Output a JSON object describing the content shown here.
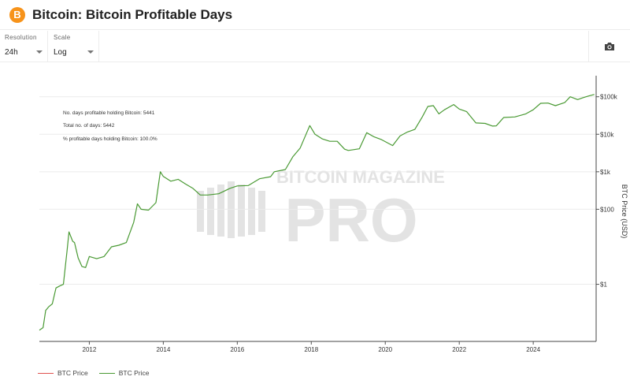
{
  "header": {
    "title": "Bitcoin: Bitcoin Profitable Days",
    "coin_symbol": "B",
    "icon": "bitcoin-icon"
  },
  "controls": {
    "resolution": {
      "label": "Resolution",
      "value": "24h"
    },
    "scale": {
      "label": "Scale",
      "value": "Log"
    },
    "camera_icon": "camera-icon"
  },
  "colors": {
    "price_line": "#4a9a34",
    "legend_red": "#e0524f",
    "bitcoin_orange": "#f7931a",
    "watermark": "#e3e3e3"
  },
  "stats": {
    "profitable_days": "No. days profitable holding Bitcoin: 5441",
    "total_days": "Total no. of days: 5442",
    "percent_profitable": "% profitable days holding Bitcoin: 100.0%"
  },
  "watermark": {
    "line1": "BITCOIN MAGAZINE",
    "line2": "PRO"
  },
  "legend": [
    {
      "label": "BTC Price",
      "color": "#e0524f"
    },
    {
      "label": "BTC Price",
      "color": "#4a9a34"
    }
  ],
  "chart_data": {
    "type": "line",
    "xlabel": "",
    "ylabel": "BTC Price (USD)",
    "y_scale": "log",
    "x_range": [
      2010.65,
      2025.7
    ],
    "y_range": [
      0.03,
      300000
    ],
    "x_ticks": [
      {
        "value": 2012,
        "label": "2012"
      },
      {
        "value": 2014,
        "label": "2014"
      },
      {
        "value": 2016,
        "label": "2016"
      },
      {
        "value": 2018,
        "label": "2018"
      },
      {
        "value": 2020,
        "label": "2020"
      },
      {
        "value": 2022,
        "label": "2022"
      },
      {
        "value": 2024,
        "label": "2024"
      }
    ],
    "y_ticks": [
      {
        "value": 1,
        "label": "$1"
      },
      {
        "value": 100,
        "label": "$100"
      },
      {
        "value": 1000,
        "label": "$1k"
      },
      {
        "value": 10000,
        "label": "$10k"
      },
      {
        "value": 100000,
        "label": "$100k"
      }
    ],
    "grid": true,
    "series": [
      {
        "x": [
          2010.65,
          2010.75,
          2010.82,
          2010.9,
          2011.0,
          2011.1,
          2011.2,
          2011.3,
          2011.4,
          2011.45,
          2011.55,
          2011.6,
          2011.7,
          2011.8,
          2011.9,
          2012.0,
          2012.2,
          2012.4,
          2012.6,
          2012.8,
          2013.0,
          2013.2,
          2013.3,
          2013.4,
          2013.6,
          2013.8,
          2013.92,
          2014.0,
          2014.2,
          2014.4,
          2014.6,
          2014.8,
          2015.0,
          2015.2,
          2015.5,
          2015.8,
          2016.0,
          2016.3,
          2016.6,
          2016.9,
          2017.0,
          2017.3,
          2017.5,
          2017.7,
          2017.85,
          2017.96,
          2018.1,
          2018.3,
          2018.5,
          2018.7,
          2018.9,
          2019.0,
          2019.3,
          2019.5,
          2019.7,
          2019.9,
          2020.2,
          2020.4,
          2020.6,
          2020.8,
          2021.0,
          2021.15,
          2021.3,
          2021.45,
          2021.6,
          2021.85,
          2022.0,
          2022.2,
          2022.45,
          2022.7,
          2022.9,
          2023.0,
          2023.2,
          2023.5,
          2023.8,
          2024.0,
          2024.2,
          2024.4,
          2024.6,
          2024.85,
          2025.0,
          2025.2,
          2025.35,
          2025.5,
          2025.65
        ],
        "y": [
          0.06,
          0.07,
          0.2,
          0.25,
          0.3,
          0.8,
          0.9,
          1.0,
          8,
          25,
          14,
          13,
          5,
          3,
          2.8,
          5.5,
          4.8,
          5.5,
          10,
          11,
          13,
          45,
          140,
          100,
          95,
          150,
          1000,
          750,
          560,
          630,
          470,
          360,
          240,
          240,
          260,
          360,
          420,
          430,
          650,
          740,
          1000,
          1150,
          2500,
          4300,
          9500,
          17000,
          10000,
          7500,
          6500,
          6500,
          4000,
          3700,
          4100,
          11000,
          8500,
          7200,
          5000,
          9000,
          11500,
          13500,
          29000,
          55000,
          58000,
          35000,
          45000,
          62000,
          47000,
          40000,
          20000,
          19500,
          16500,
          16800,
          28000,
          29000,
          35000,
          45000,
          67000,
          68000,
          58000,
          70000,
          100000,
          84000,
          95000,
          105000,
          115000
        ]
      }
    ]
  }
}
